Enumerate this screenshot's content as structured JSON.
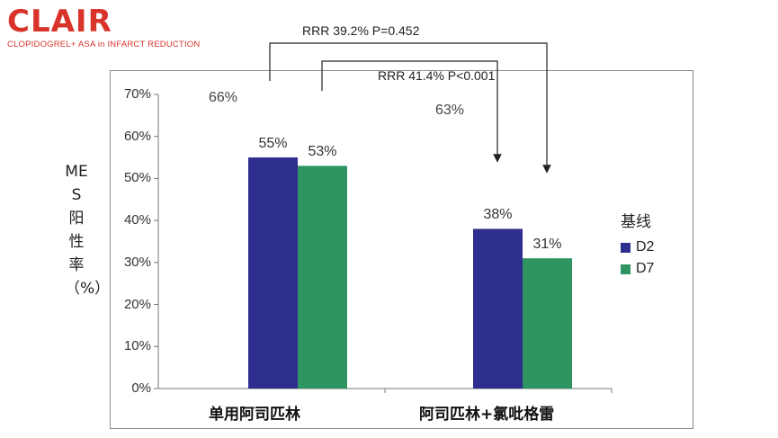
{
  "logo": {
    "name": "CLAIR",
    "subtitle": "CLOPIDOGREL+ ASA in INFARCT REDUCTION",
    "color": "#d9342b"
  },
  "chart_data": {
    "type": "bar",
    "title": "",
    "ylabel": "MES阳性率（%）",
    "xlabel": "",
    "ylim": [
      0,
      70
    ],
    "yticks": [
      "0%",
      "10%",
      "20%",
      "30%",
      "40%",
      "50%",
      "60%",
      "70%"
    ],
    "categories": [
      "单用阿司匹林",
      "阿司匹林+氯吡格雷"
    ],
    "series": [
      {
        "name": "D2",
        "values": [
          55,
          38
        ],
        "labels": [
          "55%",
          "38%"
        ],
        "color": "#2e2e8f"
      },
      {
        "name": "D7",
        "values": [
          53,
          31
        ],
        "labels": [
          "53%",
          "31%"
        ],
        "color": "#2e9462"
      }
    ],
    "legend": {
      "title": "基线",
      "placement": "right"
    },
    "baseline_notes": [
      "66%",
      "63%"
    ],
    "annotations": [
      "RRR 39.2% P=0.452",
      "RRR 41.4% P<0.001"
    ],
    "grid": false
  }
}
